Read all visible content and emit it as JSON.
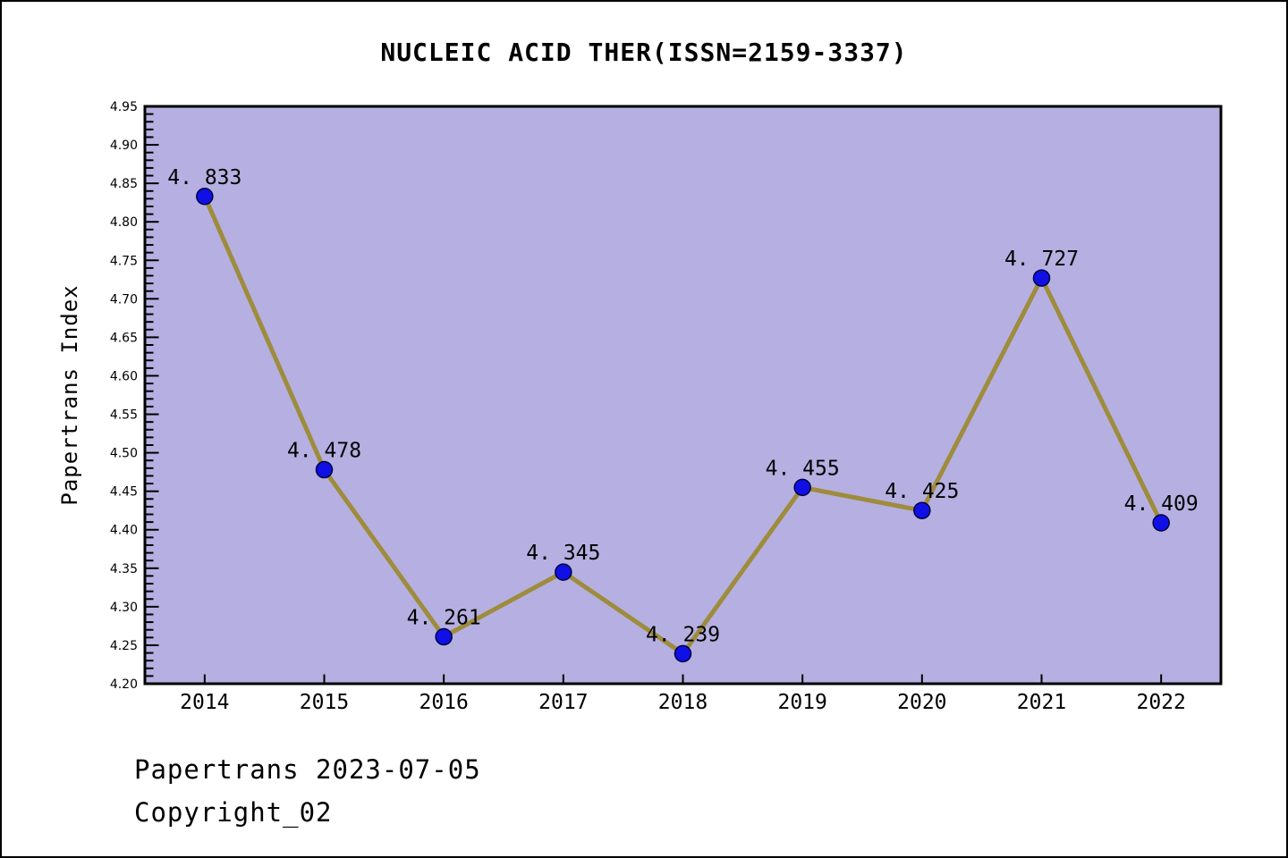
{
  "title": "NUCLEIC ACID THER(ISSN=2159-3337)",
  "y_axis_label": "Papertrans Index",
  "footer": {
    "line1": "Papertrans 2023-07-05",
    "line2": "Copyright_02"
  },
  "chart_data": {
    "type": "line",
    "title": "NUCLEIC ACID THER(ISSN=2159-3337)",
    "xlabel": "",
    "ylabel": "Papertrans Index",
    "x": [
      2014,
      2015,
      2016,
      2017,
      2018,
      2019,
      2020,
      2021,
      2022
    ],
    "values": [
      4.833,
      4.478,
      4.261,
      4.345,
      4.239,
      4.455,
      4.425,
      4.727,
      4.409
    ],
    "point_labels": [
      "4. 833",
      "4. 478",
      "4. 261",
      "4. 345",
      "4. 239",
      "4. 455",
      "4. 425",
      "4. 727",
      "4. 409"
    ],
    "x_tick_labels": [
      "2014",
      "2015",
      "2016",
      "2017",
      "2018",
      "2019",
      "2020",
      "2021",
      "2022"
    ],
    "y_tick_labels": [
      "4.20",
      "4.25",
      "4.30",
      "4.35",
      "4.40",
      "4.45",
      "4.50",
      "4.55",
      "4.60",
      "4.65",
      "4.70",
      "4.75",
      "4.80",
      "4.85",
      "4.90",
      "4.95"
    ],
    "xlim": [
      2013.5,
      2022.5
    ],
    "ylim": [
      4.2,
      4.95
    ],
    "y_minor_step": 0.01,
    "y_major_step": 0.05,
    "grid": false,
    "legend_position": "none",
    "colors": {
      "plot_bg": "#b5b0e1",
      "line": "#9e8c3c",
      "marker_fill": "#1010e6",
      "marker_edge": "#000040",
      "axis": "#000000",
      "text": "#000000",
      "page_bg": "#ffffff"
    }
  }
}
